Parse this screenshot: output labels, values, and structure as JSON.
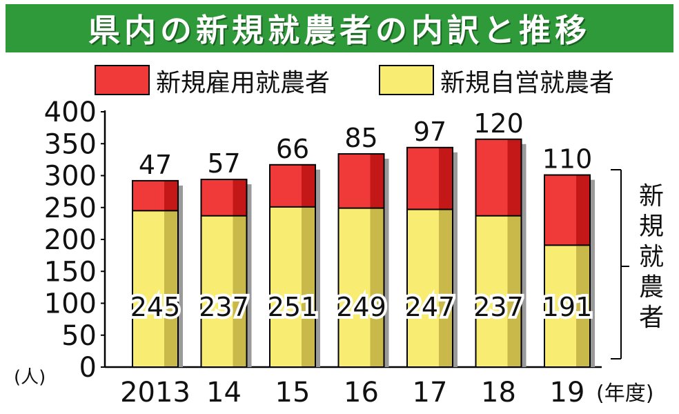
{
  "title": "県内の新規就農者の内訳と推移",
  "legend": {
    "employment": "新規雇用就農者",
    "self": "新規自営就農者"
  },
  "bracket_label": "新規就農者",
  "unit_label": "(人)",
  "year_unit": "(年度)",
  "colors": {
    "employment": "#f03a3a",
    "employment_dark": "#c41818",
    "self": "#f9ec73",
    "self_dark": "#c9b94a",
    "title_bg": "#2f9a3a"
  },
  "chart_data": {
    "type": "bar",
    "stacked": true,
    "categories": [
      "2013",
      "14",
      "15",
      "16",
      "17",
      "18",
      "19"
    ],
    "series": [
      {
        "name": "新規自営就農者",
        "values": [
          245,
          237,
          251,
          249,
          247,
          237,
          191
        ]
      },
      {
        "name": "新規雇用就農者",
        "values": [
          47,
          57,
          66,
          85,
          97,
          120,
          110
        ]
      }
    ],
    "ylim": [
      0,
      400
    ],
    "yticks": [
      0,
      50,
      100,
      150,
      200,
      250,
      300,
      350,
      400
    ],
    "grid": false,
    "legend_position": "top"
  }
}
